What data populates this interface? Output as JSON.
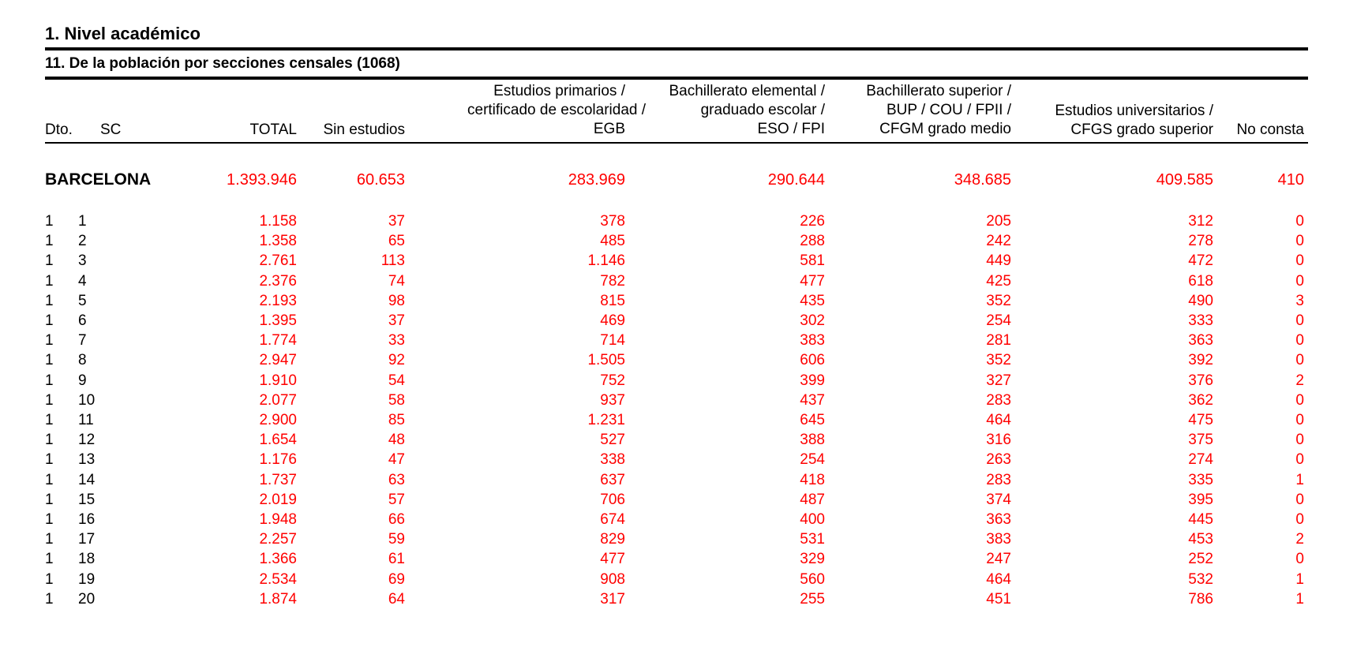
{
  "section_title": "1. Nivel académico",
  "subsection_title": "11. De la población por secciones censales (1068)",
  "headers": {
    "dto": "Dto.",
    "sc": "SC",
    "total": "TOTAL",
    "sin_estudios": "Sin estudios",
    "primarios": [
      "Estudios primarios /",
      "certificado de escolaridad /",
      "EGB"
    ],
    "bach_elemental": [
      "Bachillerato elemental /",
      "graduado escolar /",
      "ESO / FPI"
    ],
    "bach_superior": [
      "Bachillerato superior /",
      "BUP / COU / FPII /",
      "CFGM grado medio"
    ],
    "universitarios": [
      "Estudios universitarios /",
      "CFGS grado superior"
    ],
    "no_consta": "No consta"
  },
  "city_total": {
    "label": "BARCELONA",
    "total": "1.393.946",
    "sin_estudios": "60.653",
    "primarios": "283.969",
    "bach_elemental": "290.644",
    "bach_superior": "348.685",
    "universitarios": "409.585",
    "no_consta": "410"
  },
  "rows": [
    {
      "dto": "1",
      "sc": "1",
      "total": "1.158",
      "sin_estudios": "37",
      "primarios": "378",
      "bach_elemental": "226",
      "bach_superior": "205",
      "universitarios": "312",
      "no_consta": "0"
    },
    {
      "dto": "1",
      "sc": "2",
      "total": "1.358",
      "sin_estudios": "65",
      "primarios": "485",
      "bach_elemental": "288",
      "bach_superior": "242",
      "universitarios": "278",
      "no_consta": "0"
    },
    {
      "dto": "1",
      "sc": "3",
      "total": "2.761",
      "sin_estudios": "113",
      "primarios": "1.146",
      "bach_elemental": "581",
      "bach_superior": "449",
      "universitarios": "472",
      "no_consta": "0"
    },
    {
      "dto": "1",
      "sc": "4",
      "total": "2.376",
      "sin_estudios": "74",
      "primarios": "782",
      "bach_elemental": "477",
      "bach_superior": "425",
      "universitarios": "618",
      "no_consta": "0"
    },
    {
      "dto": "1",
      "sc": "5",
      "total": "2.193",
      "sin_estudios": "98",
      "primarios": "815",
      "bach_elemental": "435",
      "bach_superior": "352",
      "universitarios": "490",
      "no_consta": "3"
    },
    {
      "dto": "1",
      "sc": "6",
      "total": "1.395",
      "sin_estudios": "37",
      "primarios": "469",
      "bach_elemental": "302",
      "bach_superior": "254",
      "universitarios": "333",
      "no_consta": "0"
    },
    {
      "dto": "1",
      "sc": "7",
      "total": "1.774",
      "sin_estudios": "33",
      "primarios": "714",
      "bach_elemental": "383",
      "bach_superior": "281",
      "universitarios": "363",
      "no_consta": "0"
    },
    {
      "dto": "1",
      "sc": "8",
      "total": "2.947",
      "sin_estudios": "92",
      "primarios": "1.505",
      "bach_elemental": "606",
      "bach_superior": "352",
      "universitarios": "392",
      "no_consta": "0"
    },
    {
      "dto": "1",
      "sc": "9",
      "total": "1.910",
      "sin_estudios": "54",
      "primarios": "752",
      "bach_elemental": "399",
      "bach_superior": "327",
      "universitarios": "376",
      "no_consta": "2"
    },
    {
      "dto": "1",
      "sc": "10",
      "total": "2.077",
      "sin_estudios": "58",
      "primarios": "937",
      "bach_elemental": "437",
      "bach_superior": "283",
      "universitarios": "362",
      "no_consta": "0"
    },
    {
      "dto": "1",
      "sc": "11",
      "total": "2.900",
      "sin_estudios": "85",
      "primarios": "1.231",
      "bach_elemental": "645",
      "bach_superior": "464",
      "universitarios": "475",
      "no_consta": "0"
    },
    {
      "dto": "1",
      "sc": "12",
      "total": "1.654",
      "sin_estudios": "48",
      "primarios": "527",
      "bach_elemental": "388",
      "bach_superior": "316",
      "universitarios": "375",
      "no_consta": "0"
    },
    {
      "dto": "1",
      "sc": "13",
      "total": "1.176",
      "sin_estudios": "47",
      "primarios": "338",
      "bach_elemental": "254",
      "bach_superior": "263",
      "universitarios": "274",
      "no_consta": "0"
    },
    {
      "dto": "1",
      "sc": "14",
      "total": "1.737",
      "sin_estudios": "63",
      "primarios": "637",
      "bach_elemental": "418",
      "bach_superior": "283",
      "universitarios": "335",
      "no_consta": "1"
    },
    {
      "dto": "1",
      "sc": "15",
      "total": "2.019",
      "sin_estudios": "57",
      "primarios": "706",
      "bach_elemental": "487",
      "bach_superior": "374",
      "universitarios": "395",
      "no_consta": "0"
    },
    {
      "dto": "1",
      "sc": "16",
      "total": "1.948",
      "sin_estudios": "66",
      "primarios": "674",
      "bach_elemental": "400",
      "bach_superior": "363",
      "universitarios": "445",
      "no_consta": "0"
    },
    {
      "dto": "1",
      "sc": "17",
      "total": "2.257",
      "sin_estudios": "59",
      "primarios": "829",
      "bach_elemental": "531",
      "bach_superior": "383",
      "universitarios": "453",
      "no_consta": "2"
    },
    {
      "dto": "1",
      "sc": "18",
      "total": "1.366",
      "sin_estudios": "61",
      "primarios": "477",
      "bach_elemental": "329",
      "bach_superior": "247",
      "universitarios": "252",
      "no_consta": "0"
    },
    {
      "dto": "1",
      "sc": "19",
      "total": "2.534",
      "sin_estudios": "69",
      "primarios": "908",
      "bach_elemental": "560",
      "bach_superior": "464",
      "universitarios": "532",
      "no_consta": "1"
    },
    {
      "dto": "1",
      "sc": "20",
      "total": "1.874",
      "sin_estudios": "64",
      "primarios": "317",
      "bach_elemental": "255",
      "bach_superior": "451",
      "universitarios": "786",
      "no_consta": "1"
    }
  ]
}
